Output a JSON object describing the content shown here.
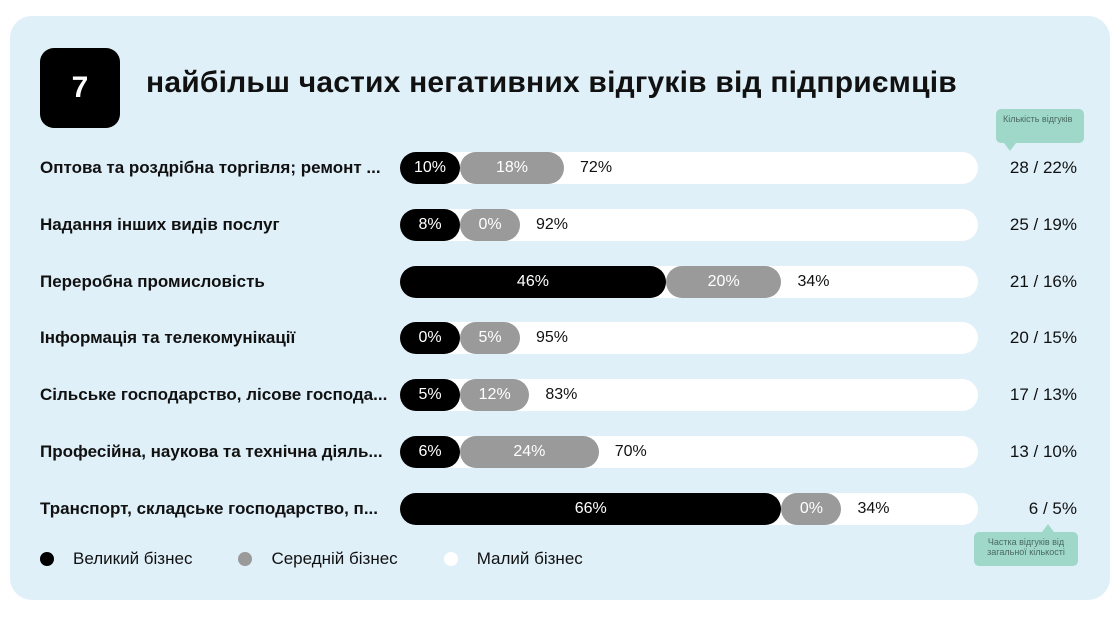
{
  "header": {
    "number": "7",
    "title": "найбільш частих негативних відгуків від підприємців"
  },
  "tooltips": {
    "count_label": "Кількість відгуків",
    "share_label": "Частка відгуків від загальної кількості"
  },
  "colors": {
    "background": "#dff0f9",
    "large": "#000000",
    "medium": "#9a9a9a",
    "small": "#ffffff",
    "tooltip": "#9fd8c8"
  },
  "legend": [
    {
      "name": "Великий бізнес",
      "color": "#000000"
    },
    {
      "name": "Середній бізнес",
      "color": "#9a9a9a"
    },
    {
      "name": "Малий бізнес",
      "color": "#ffffff"
    }
  ],
  "chart_data": {
    "type": "bar",
    "stacked": true,
    "orientation": "horizontal",
    "title": "найбільш частих негативних відгуків від підприємців",
    "categories": [
      "Оптова та роздрібна торгівля; ремонт ...",
      "Надання інших видів послуг",
      "Переробна промисловість",
      "Інформація та телекомунікації",
      "Сільське господарство, лісове господа...",
      "Професійна, наукова та технічна діяль...",
      "Транспорт, складське господарство, п..."
    ],
    "series": [
      {
        "name": "Великий бізнес",
        "values": [
          10,
          8,
          46,
          0,
          5,
          6,
          66
        ],
        "labels": [
          "10%",
          "8%",
          "46%",
          "0%",
          "5%",
          "6%",
          "66%"
        ]
      },
      {
        "name": "Середній бізнес",
        "values": [
          18,
          0,
          20,
          5,
          12,
          24,
          0
        ],
        "labels": [
          "18%",
          "0%",
          "20%",
          "5%",
          "12%",
          "24%",
          "0%"
        ]
      },
      {
        "name": "Малий бізнес",
        "values": [
          72,
          92,
          34,
          95,
          83,
          70,
          34
        ],
        "labels": [
          "72%",
          "92%",
          "34%",
          "95%",
          "83%",
          "70%",
          "34%"
        ]
      }
    ],
    "counts": [
      "28 / 22%",
      "25 / 19%",
      "21 / 16%",
      "20 / 15%",
      "17 / 13%",
      "13 / 10%",
      "6 / 5%"
    ],
    "legend_position": "bottom-left",
    "grid": false
  }
}
